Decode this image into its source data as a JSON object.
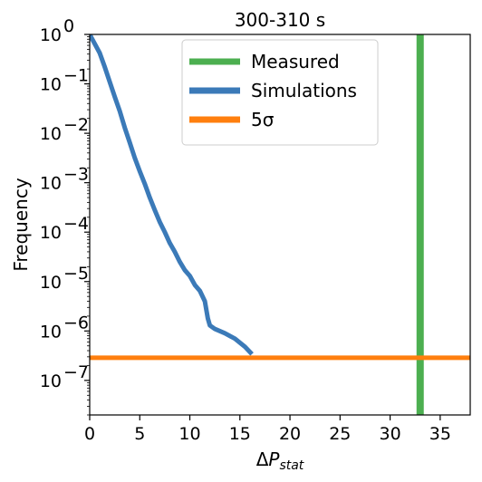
{
  "chart_data": {
    "type": "line",
    "title": "300-310 s",
    "xlabel": "ΔP_stat",
    "ylabel": "Frequency",
    "xlim": [
      0,
      38
    ],
    "ylim": [
      2e-08,
      1
    ],
    "yscale": "log",
    "grid": false,
    "legend_position": "top-center",
    "x_ticks": [
      0,
      5,
      10,
      15,
      20,
      25,
      30,
      35
    ],
    "y_ticks": [
      {
        "value": 1e-07,
        "base": "10",
        "exp": "−7"
      },
      {
        "value": 1e-06,
        "base": "10",
        "exp": "−6"
      },
      {
        "value": 1e-05,
        "base": "10",
        "exp": "−5"
      },
      {
        "value": 0.0001,
        "base": "10",
        "exp": "−4"
      },
      {
        "value": 0.001,
        "base": "10",
        "exp": "−3"
      },
      {
        "value": 0.01,
        "base": "10",
        "exp": "−2"
      },
      {
        "value": 0.1,
        "base": "10",
        "exp": "−1"
      },
      {
        "value": 1,
        "base": "10",
        "exp": "0"
      }
    ],
    "series": [
      {
        "name": "Measured",
        "kind": "vline",
        "x": 33.0,
        "color": "#4caf50"
      },
      {
        "name": "Simulations",
        "kind": "line",
        "color": "#3b7ab8",
        "points": [
          [
            0.0,
            1.0
          ],
          [
            0.5,
            0.65
          ],
          [
            1.0,
            0.42
          ],
          [
            1.5,
            0.22
          ],
          [
            2.0,
            0.11
          ],
          [
            2.5,
            0.055
          ],
          [
            3.0,
            0.028
          ],
          [
            3.5,
            0.013
          ],
          [
            4.0,
            0.0065
          ],
          [
            4.5,
            0.0032
          ],
          [
            5.0,
            0.0017
          ],
          [
            5.5,
            0.00095
          ],
          [
            6.0,
            0.0005
          ],
          [
            6.5,
            0.00028
          ],
          [
            7.0,
            0.00016
          ],
          [
            7.5,
            0.0001
          ],
          [
            8.0,
            6e-05
          ],
          [
            8.5,
            4e-05
          ],
          [
            9.0,
            2.5e-05
          ],
          [
            9.5,
            1.7e-05
          ],
          [
            10.0,
            1.3e-05
          ],
          [
            10.5,
            8.5e-06
          ],
          [
            11.0,
            6.5e-06
          ],
          [
            11.5,
            4e-06
          ],
          [
            11.8,
            1.8e-06
          ],
          [
            12.0,
            1.3e-06
          ],
          [
            12.5,
            1.1e-06
          ],
          [
            13.5,
            9e-07
          ],
          [
            14.5,
            7e-07
          ],
          [
            15.5,
            4.8e-07
          ],
          [
            16.2,
            3.4e-07
          ]
        ]
      },
      {
        "name": "5σ",
        "kind": "hline",
        "y": 2.87e-07,
        "color": "#ff7f0e"
      }
    ]
  }
}
